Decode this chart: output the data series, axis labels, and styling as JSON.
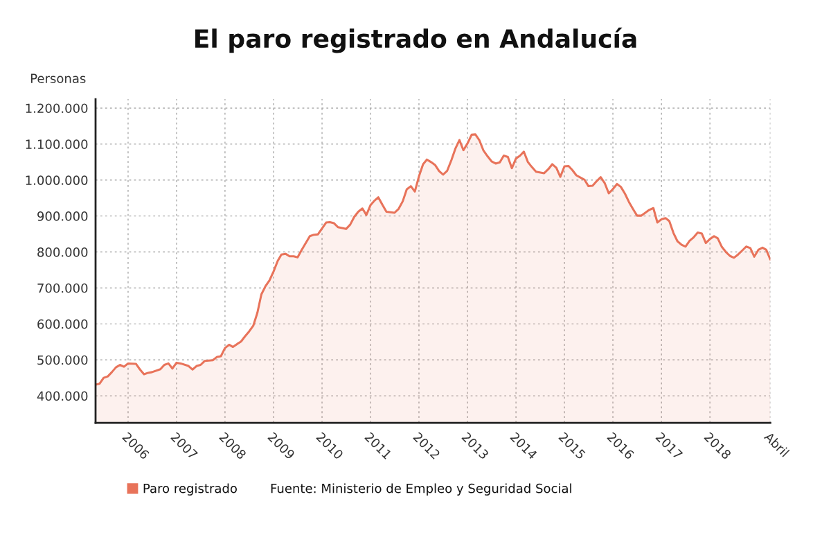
{
  "chart_data": {
    "type": "area",
    "title": "El paro registrado en Andalucía",
    "ylabel": "Personas",
    "x": [
      "2005-05",
      "2005-06",
      "2005-07",
      "2005-08",
      "2005-09",
      "2005-10",
      "2005-11",
      "2005-12",
      "2006-01",
      "2006-03",
      "2006-04",
      "2006-05",
      "2006-06",
      "2006-07",
      "2006-09",
      "2006-10",
      "2006-11",
      "2006-12",
      "2007-01",
      "2007-02",
      "2007-04",
      "2007-05",
      "2007-06",
      "2007-07",
      "2007-08",
      "2007-10",
      "2007-11",
      "2007-12",
      "2008-01",
      "2008-02",
      "2008-03",
      "2008-04",
      "2008-05",
      "2008-06",
      "2008-07",
      "2008-08",
      "2008-09",
      "2008-10",
      "2008-11",
      "2008-12",
      "2009-01",
      "2009-02",
      "2009-03",
      "2009-04",
      "2009-05",
      "2009-06",
      "2009-07",
      "2009-08",
      "2009-10",
      "2009-11",
      "2009-12",
      "2010-02",
      "2010-03",
      "2010-04",
      "2010-05",
      "2010-07",
      "2010-08",
      "2010-09",
      "2010-10",
      "2010-11",
      "2010-12",
      "2011-01",
      "2011-02",
      "2011-03",
      "2011-04",
      "2011-05",
      "2011-07",
      "2011-08",
      "2011-09",
      "2011-10",
      "2011-11",
      "2011-12",
      "2012-01",
      "2012-02",
      "2012-03",
      "2012-04",
      "2012-05",
      "2012-06",
      "2012-07",
      "2012-08",
      "2012-09",
      "2012-10",
      "2012-11",
      "2012-12",
      "2013-01",
      "2013-02",
      "2013-03",
      "2013-04",
      "2013-05",
      "2013-06",
      "2013-07",
      "2013-08",
      "2013-09",
      "2013-10",
      "2013-11",
      "2013-12",
      "2014-01",
      "2014-02",
      "2014-03",
      "2014-04",
      "2014-05",
      "2014-06",
      "2014-08",
      "2014-09",
      "2014-10",
      "2014-11",
      "2014-12",
      "2015-01",
      "2015-02",
      "2015-03",
      "2015-04",
      "2015-05",
      "2015-06",
      "2015-07",
      "2015-08",
      "2015-09",
      "2015-10",
      "2015-11",
      "2015-12",
      "2016-01",
      "2016-02",
      "2016-03",
      "2016-04",
      "2016-05",
      "2016-06",
      "2016-07",
      "2016-08",
      "2016-09",
      "2016-10",
      "2016-11",
      "2016-12",
      "2017-01",
      "2017-02",
      "2017-03",
      "2017-04",
      "2017-05",
      "2017-06",
      "2017-07",
      "2017-08",
      "2017-09",
      "2017-10",
      "2017-11",
      "2017-12",
      "2018-01",
      "2018-02",
      "2018-03",
      "2018-04",
      "2018-05",
      "2018-06",
      "2018-07",
      "2018-08",
      "2018-09",
      "2018-10",
      "2018-11",
      "2018-12",
      "2019-01",
      "2019-02",
      "2019-03",
      "2019-04"
    ],
    "series": [
      {
        "name": "Paro registrado",
        "color": "#e8735a",
        "values": [
          431000,
          434000,
          450000,
          454000,
          466000,
          479000,
          486000,
          481000,
          490000,
          489000,
          473000,
          460000,
          464000,
          466000,
          474000,
          486000,
          490000,
          476000,
          492000,
          490000,
          483000,
          473000,
          483000,
          486000,
          497000,
          499000,
          508000,
          510000,
          533000,
          542000,
          536000,
          544000,
          551000,
          566000,
          579000,
          595000,
          631000,
          682000,
          705000,
          721000,
          746000,
          775000,
          793000,
          795000,
          788000,
          788000,
          785000,
          806000,
          844000,
          848000,
          849000,
          882000,
          883000,
          880000,
          869000,
          864000,
          876000,
          898000,
          912000,
          921000,
          903000,
          930000,
          943000,
          952000,
          931000,
          912000,
          909000,
          920000,
          941000,
          974000,
          983000,
          968000,
          1010000,
          1044000,
          1057000,
          1050000,
          1042000,
          1025000,
          1015000,
          1026000,
          1055000,
          1087000,
          1111000,
          1083000,
          1102000,
          1126000,
          1127000,
          1110000,
          1082000,
          1066000,
          1052000,
          1046000,
          1049000,
          1068000,
          1064000,
          1033000,
          1060000,
          1068000,
          1079000,
          1050000,
          1036000,
          1023000,
          1019000,
          1030000,
          1044000,
          1034000,
          1009000,
          1038000,
          1039000,
          1028000,
          1013000,
          1007000,
          1001000,
          983000,
          984000,
          997000,
          1008000,
          991000,
          963000,
          975000,
          989000,
          981000,
          962000,
          939000,
          919000,
          901000,
          901000,
          909000,
          917000,
          922000,
          882000,
          891000,
          894000,
          886000,
          853000,
          830000,
          820000,
          815000,
          831000,
          841000,
          854000,
          851000,
          825000,
          836000,
          844000,
          838000,
          814000,
          800000,
          789000,
          784000,
          793000,
          804000,
          815000,
          811000,
          787000,
          806000,
          812000,
          806000,
          779000
        ]
      }
    ],
    "xlim": [
      "2005-05",
      "2019-04"
    ],
    "xticks": [
      {
        "value": "2006-01",
        "label": "2006"
      },
      {
        "value": "2007-01",
        "label": "2007"
      },
      {
        "value": "2008-01",
        "label": "2008"
      },
      {
        "value": "2009-01",
        "label": "2009"
      },
      {
        "value": "2010-01",
        "label": "2010"
      },
      {
        "value": "2011-01",
        "label": "2011"
      },
      {
        "value": "2012-01",
        "label": "2012"
      },
      {
        "value": "2013-01",
        "label": "2013"
      },
      {
        "value": "2014-01",
        "label": "2014"
      },
      {
        "value": "2015-01",
        "label": "2015"
      },
      {
        "value": "2016-01",
        "label": "2016"
      },
      {
        "value": "2017-01",
        "label": "2017"
      },
      {
        "value": "2018-01",
        "label": "2018"
      },
      {
        "value": "2019-04",
        "label": "Abril"
      }
    ],
    "ylim": [
      325000,
      1225000
    ],
    "yticks": [
      {
        "value": 400000,
        "label": "400.000"
      },
      {
        "value": 500000,
        "label": "500.000"
      },
      {
        "value": 600000,
        "label": "600.000"
      },
      {
        "value": 700000,
        "label": "700.000"
      },
      {
        "value": 800000,
        "label": "800.000"
      },
      {
        "value": 900000,
        "label": "900.000"
      },
      {
        "value": 1000000,
        "label": "1.000.000"
      },
      {
        "value": 1100000,
        "label": "1.100.000"
      },
      {
        "value": 1200000,
        "label": "1.200.000"
      }
    ],
    "grid": true,
    "legend": "bottom",
    "annotations": [
      "Fuente: Ministerio de Empleo y Seguridad Social"
    ]
  }
}
